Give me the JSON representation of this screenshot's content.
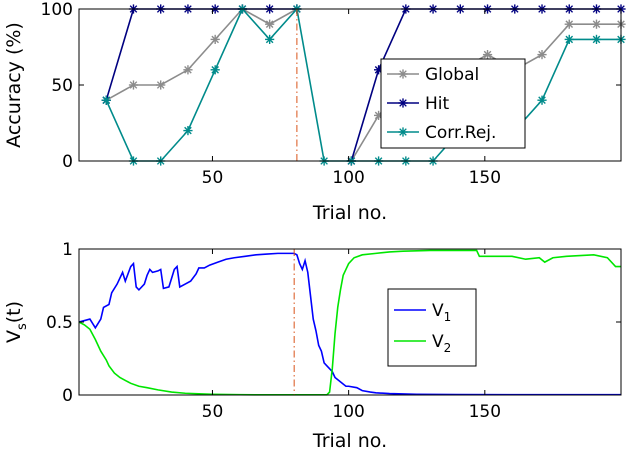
{
  "chart_data": [
    {
      "type": "line",
      "ylabel": "Accuracy (%)",
      "xlabel": "Trial no.",
      "xlim": [
        1,
        200
      ],
      "ylim": [
        0,
        100
      ],
      "xticks": [
        50,
        100,
        150
      ],
      "yticks": [
        0,
        50,
        100
      ],
      "grid": false,
      "legend_position": "right",
      "marker": "asterisk",
      "vline": {
        "x": 81,
        "color": "#d95319",
        "style": "dash-dot"
      },
      "x": [
        11,
        21,
        31,
        41,
        51,
        61,
        71,
        81,
        91,
        101,
        111,
        121,
        131,
        141,
        151,
        161,
        171,
        181,
        191,
        200
      ],
      "series": [
        {
          "name": "Global",
          "color": "#8c8c8c",
          "values": [
            40,
            50,
            50,
            60,
            80,
            100,
            90,
            100,
            null,
            0,
            30,
            50,
            50,
            60,
            70,
            60,
            70,
            90,
            90,
            90
          ]
        },
        {
          "name": "Hit",
          "color": "#000080",
          "values": [
            40,
            100,
            100,
            100,
            100,
            100,
            100,
            100,
            null,
            0,
            60,
            100,
            100,
            100,
            100,
            100,
            100,
            100,
            100,
            100
          ]
        },
        {
          "name": "Corr.Rej.",
          "color": "#008b8b",
          "values": [
            40,
            0,
            0,
            20,
            60,
            100,
            80,
            100,
            0,
            0,
            0,
            0,
            0,
            20,
            20,
            20,
            40,
            80,
            80,
            80
          ]
        }
      ]
    },
    {
      "type": "line",
      "ylabel": "V",
      "ylabel_sub": "s",
      "ylabel_tail": "(t)",
      "xlabel": "Trial no.",
      "xlim": [
        1,
        200
      ],
      "ylim": [
        0,
        1
      ],
      "xticks": [
        50,
        100,
        150
      ],
      "yticks": [
        0,
        0.5,
        1
      ],
      "ytick_labels": [
        "0",
        "0.5",
        "1"
      ],
      "grid": false,
      "legend_position": "center-right",
      "vline": {
        "x": 80,
        "color": "#d95319",
        "style": "dash-dot"
      },
      "series": [
        {
          "name": "V",
          "sub": "1",
          "color": "#0000ff",
          "points": [
            [
              1,
              0.5
            ],
            [
              3,
              0.51
            ],
            [
              5,
              0.52
            ],
            [
              7,
              0.46
            ],
            [
              9,
              0.52
            ],
            [
              10,
              0.6
            ],
            [
              12,
              0.62
            ],
            [
              13,
              0.7
            ],
            [
              15,
              0.76
            ],
            [
              17,
              0.84
            ],
            [
              18,
              0.78
            ],
            [
              20,
              0.88
            ],
            [
              21,
              0.9
            ],
            [
              22,
              0.74
            ],
            [
              23,
              0.72
            ],
            [
              25,
              0.76
            ],
            [
              26,
              0.82
            ],
            [
              27,
              0.86
            ],
            [
              28,
              0.84
            ],
            [
              30,
              0.85
            ],
            [
              31,
              0.86
            ],
            [
              32,
              0.73
            ],
            [
              34,
              0.74
            ],
            [
              35,
              0.8
            ],
            [
              36,
              0.86
            ],
            [
              37,
              0.88
            ],
            [
              38,
              0.74
            ],
            [
              40,
              0.76
            ],
            [
              42,
              0.78
            ],
            [
              44,
              0.83
            ],
            [
              45,
              0.87
            ],
            [
              47,
              0.87
            ],
            [
              49,
              0.89
            ],
            [
              52,
              0.91
            ],
            [
              55,
              0.93
            ],
            [
              58,
              0.94
            ],
            [
              62,
              0.95
            ],
            [
              66,
              0.96
            ],
            [
              70,
              0.965
            ],
            [
              74,
              0.97
            ],
            [
              78,
              0.97
            ],
            [
              80,
              0.97
            ],
            [
              81,
              0.96
            ],
            [
              82,
              0.9
            ],
            [
              83,
              0.86
            ],
            [
              84,
              0.92
            ],
            [
              85,
              0.84
            ],
            [
              86,
              0.68
            ],
            [
              87,
              0.52
            ],
            [
              88,
              0.44
            ],
            [
              89,
              0.34
            ],
            [
              90,
              0.3
            ],
            [
              91,
              0.22
            ],
            [
              92,
              0.2
            ],
            [
              94,
              0.16
            ],
            [
              95,
              0.12
            ],
            [
              97,
              0.09
            ],
            [
              99,
              0.06
            ],
            [
              100,
              0.06
            ],
            [
              103,
              0.05
            ],
            [
              105,
              0.03
            ],
            [
              108,
              0.02
            ],
            [
              110,
              0.015
            ],
            [
              115,
              0.01
            ],
            [
              125,
              0.005
            ],
            [
              140,
              0.003
            ],
            [
              170,
              0.002
            ],
            [
              200,
              0.002
            ]
          ]
        },
        {
          "name": "V",
          "sub": "2",
          "color": "#00e600",
          "points": [
            [
              1,
              0.5
            ],
            [
              3,
              0.48
            ],
            [
              5,
              0.45
            ],
            [
              7,
              0.38
            ],
            [
              9,
              0.3
            ],
            [
              11,
              0.24
            ],
            [
              12,
              0.2
            ],
            [
              14,
              0.15
            ],
            [
              16,
              0.12
            ],
            [
              18,
              0.1
            ],
            [
              20,
              0.08
            ],
            [
              23,
              0.06
            ],
            [
              26,
              0.05
            ],
            [
              30,
              0.035
            ],
            [
              35,
              0.02
            ],
            [
              40,
              0.012
            ],
            [
              50,
              0.005
            ],
            [
              60,
              0.002
            ],
            [
              70,
              0.001
            ],
            [
              80,
              0.001
            ],
            [
              85,
              0.001
            ],
            [
              90,
              0.001
            ],
            [
              92,
              0.001
            ],
            [
              93,
              0.02
            ],
            [
              94,
              0.18
            ],
            [
              95,
              0.42
            ],
            [
              96,
              0.6
            ],
            [
              97,
              0.72
            ],
            [
              98,
              0.82
            ],
            [
              99,
              0.86
            ],
            [
              100,
              0.9
            ],
            [
              102,
              0.94
            ],
            [
              105,
              0.96
            ],
            [
              110,
              0.97
            ],
            [
              115,
              0.98
            ],
            [
              120,
              0.985
            ],
            [
              130,
              0.99
            ],
            [
              140,
              0.99
            ],
            [
              147,
              0.99
            ],
            [
              148,
              0.95
            ],
            [
              150,
              0.95
            ],
            [
              160,
              0.95
            ],
            [
              165,
              0.93
            ],
            [
              170,
              0.94
            ],
            [
              172,
              0.91
            ],
            [
              175,
              0.94
            ],
            [
              180,
              0.95
            ],
            [
              190,
              0.96
            ],
            [
              195,
              0.94
            ],
            [
              198,
              0.88
            ],
            [
              200,
              0.88
            ]
          ]
        }
      ]
    }
  ]
}
